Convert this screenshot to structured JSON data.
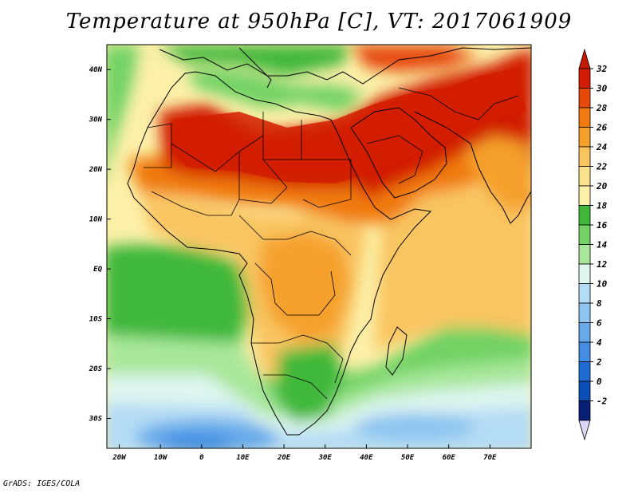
{
  "title": "Temperature at 950hPa [C], VT: 2017061909",
  "credit": "GrADS: IGES/COLA",
  "map": {
    "variable": "Temperature",
    "level": "950hPa",
    "units": "C",
    "valid_time": "2017061909",
    "lon_range": [
      -23,
      80
    ],
    "lat_range": [
      -36,
      45
    ],
    "lat_labels": [
      {
        "lat": 40,
        "label": "40N"
      },
      {
        "lat": 30,
        "label": "30N"
      },
      {
        "lat": 20,
        "label": "20N"
      },
      {
        "lat": 10,
        "label": "10N"
      },
      {
        "lat": 0,
        "label": "EQ"
      },
      {
        "lat": -10,
        "label": "10S"
      },
      {
        "lat": -20,
        "label": "20S"
      },
      {
        "lat": -30,
        "label": "30S"
      }
    ],
    "lon_labels": [
      {
        "lon": -20,
        "label": "20W"
      },
      {
        "lon": -10,
        "label": "10W"
      },
      {
        "lon": 0,
        "label": "0"
      },
      {
        "lon": 10,
        "label": "10E"
      },
      {
        "lon": 20,
        "label": "20E"
      },
      {
        "lon": 30,
        "label": "30E"
      },
      {
        "lon": 40,
        "label": "40E"
      },
      {
        "lon": 50,
        "label": "50E"
      },
      {
        "lon": 60,
        "label": "60E"
      },
      {
        "lon": 70,
        "label": "70E"
      }
    ]
  },
  "colorbar": {
    "labels": [
      "32",
      "30",
      "28",
      "26",
      "24",
      "22",
      "20",
      "18",
      "16",
      "14",
      "12",
      "10",
      "8",
      "6",
      "4",
      "2",
      "0",
      "-2"
    ],
    "colors": [
      "#d21d00",
      "#e64a0a",
      "#f07a0f",
      "#f5a02a",
      "#f9c560",
      "#fbe28c",
      "#fcf0a8",
      "#3fb83a",
      "#72d364",
      "#a8e79b",
      "#dff5f0",
      "#b3dcf5",
      "#8dc5f0",
      "#66aaea",
      "#438ee2",
      "#1f6dd2",
      "#0a4fb8",
      "#081f78"
    ],
    "bands": [
      {
        "min": 30,
        "color": "#d21d00"
      },
      {
        "min": 28,
        "color": "#e64a0a"
      },
      {
        "min": 26,
        "color": "#f07a0f"
      },
      {
        "min": 24,
        "color": "#f5a02a"
      },
      {
        "min": 22,
        "color": "#f9c560"
      },
      {
        "min": 20,
        "color": "#fbe28c"
      },
      {
        "min": 18,
        "color": "#fcf0a8"
      },
      {
        "min": 16,
        "color": "#3fb83a"
      },
      {
        "min": 14,
        "color": "#72d364"
      },
      {
        "min": 12,
        "color": "#a8e79b"
      },
      {
        "min": 10,
        "color": "#dff5f0"
      },
      {
        "min": 8,
        "color": "#b3dcf5"
      },
      {
        "min": 6,
        "color": "#8dc5f0"
      },
      {
        "min": 4,
        "color": "#66aaea"
      },
      {
        "min": 2,
        "color": "#438ee2"
      },
      {
        "min": 0,
        "color": "#1f6dd2"
      },
      {
        "min": -2,
        "color": "#0a4fb8"
      },
      {
        "min": -99,
        "color": "#081f78"
      }
    ],
    "top_arrow_color": "#c41a00",
    "bottom_arrow_color": "#dcd8f8"
  }
}
